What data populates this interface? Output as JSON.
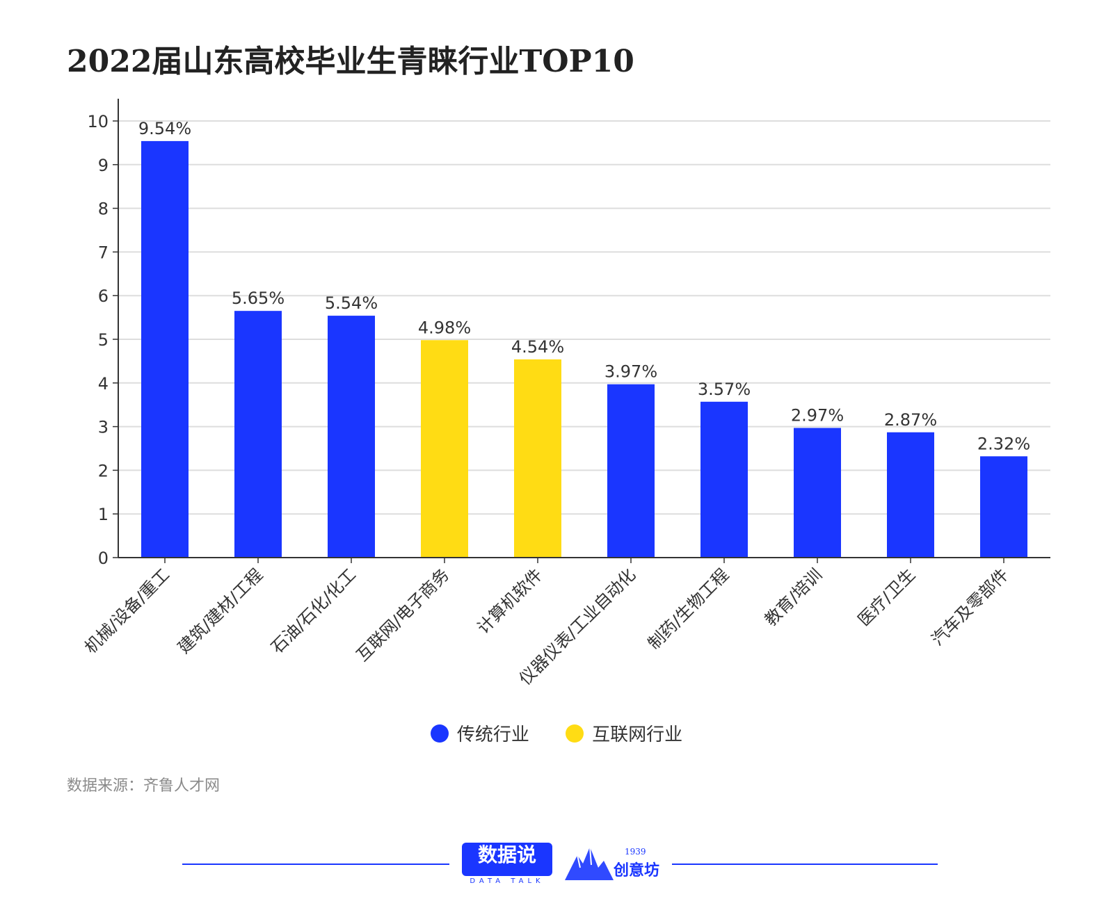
{
  "title": "2022届山东高校毕业生青睐行业TOP10",
  "source": "数据来源：齐鲁人才网",
  "colors": {
    "traditional": "#1a36ff",
    "internet": "#ffdc14",
    "grid": "#dddddd",
    "axis": "#333333"
  },
  "legend": [
    {
      "name": "传统行业",
      "color": "#1a36ff"
    },
    {
      "name": "互联网行业",
      "color": "#ffdc14"
    }
  ],
  "footer": {
    "logo_main": "数据说",
    "logo_sub": "DATA TALK",
    "logo2_year": "1939",
    "logo2_text": "创意坊"
  },
  "chart_data": {
    "type": "bar",
    "categories": [
      "机械/设备/重工",
      "建筑/建材/工程",
      "石油/石化/化工",
      "互联网/电子商务",
      "计算机软件",
      "仪器仪表/工业自动化",
      "制药/生物工程",
      "教育/培训",
      "医疗/卫生",
      "汽车及零部件"
    ],
    "values": [
      9.54,
      5.65,
      5.54,
      4.98,
      4.54,
      3.97,
      3.57,
      2.97,
      2.87,
      2.32
    ],
    "labels": [
      "9.54%",
      "5.65%",
      "5.54%",
      "4.98%",
      "4.54%",
      "3.97%",
      "3.57%",
      "2.97%",
      "2.87%",
      "2.32%"
    ],
    "groups": [
      "传统行业",
      "传统行业",
      "传统行业",
      "互联网行业",
      "互联网行业",
      "传统行业",
      "传统行业",
      "传统行业",
      "传统行业",
      "传统行业"
    ],
    "ylim": [
      0,
      10
    ],
    "yticks": [
      0,
      1,
      2,
      3,
      4,
      5,
      6,
      7,
      8,
      9,
      10
    ],
    "grid": true,
    "legend_position": "bottom"
  }
}
